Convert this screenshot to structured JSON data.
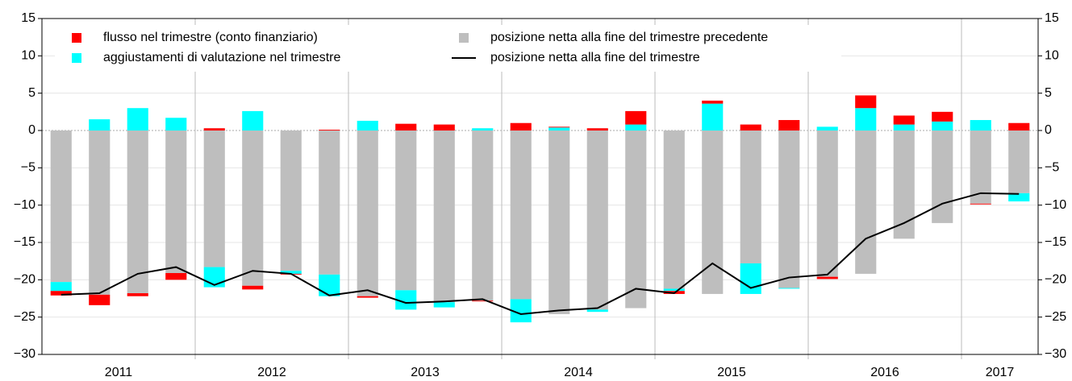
{
  "chart_data": {
    "type": "bar",
    "categories": [
      "2011",
      null,
      null,
      null,
      "2012",
      null,
      null,
      null,
      "2013",
      null,
      null,
      null,
      "2014",
      null,
      null,
      null,
      "2015",
      null,
      null,
      null,
      "2016",
      null,
      null,
      null,
      "2017",
      null
    ],
    "series": [
      {
        "name": "flusso nel trimestre (conto finanziario)",
        "color": "#ff0000",
        "values": [
          -0.6,
          -1.4,
          -0.4,
          -0.9,
          0.3,
          -0.5,
          -0.1,
          0.1,
          -0.2,
          0.9,
          0.8,
          -0.1,
          1.0,
          0.1,
          0.3,
          1.8,
          -0.4,
          0.4,
          0.8,
          1.4,
          -0.3,
          1.7,
          1.2,
          1.3,
          -0.1,
          1.0
        ]
      },
      {
        "name": "aggiustamenti di valutazione nel trimestre",
        "color": "#00ffff",
        "values": [
          -1.2,
          1.5,
          3.0,
          1.7,
          -2.7,
          2.6,
          -0.4,
          -2.9,
          1.3,
          -2.6,
          -0.7,
          0.3,
          -3.1,
          0.4,
          -0.3,
          0.8,
          -0.3,
          3.6,
          -4.1,
          -0.1,
          0.5,
          3.0,
          0.8,
          1.2,
          1.4,
          -1.1
        ]
      },
      {
        "name": "posizione netta alla fine del trimestre precedente",
        "color": "#bebebe",
        "values": [
          -20.3,
          -22.0,
          -21.8,
          -19.1,
          -18.3,
          -20.8,
          -18.8,
          -19.3,
          -22.2,
          -21.4,
          -23.0,
          -22.8,
          -22.6,
          -24.6,
          -24.0,
          -23.8,
          -21.2,
          -21.9,
          -17.8,
          -21.1,
          -19.6,
          -19.2,
          -14.5,
          -12.4,
          -9.8,
          -8.4
        ]
      },
      {
        "name": "posizione netta alla fine del trimestre",
        "color": "#000000",
        "type": "line",
        "values": [
          -22.0,
          -21.8,
          -19.2,
          -18.3,
          -20.7,
          -18.8,
          -19.2,
          -22.1,
          -21.4,
          -23.1,
          -22.9,
          -22.6,
          -24.6,
          -24.1,
          -23.8,
          -21.2,
          -21.8,
          -17.8,
          -21.1,
          -19.7,
          -19.3,
          -14.5,
          -12.4,
          -9.8,
          -8.4,
          -8.5
        ]
      }
    ],
    "ylim": [
      -30,
      15
    ],
    "yticks": [
      {
        "value": -30,
        "label": "−30"
      },
      {
        "value": -25,
        "label": "−25"
      },
      {
        "value": -20,
        "label": "−20"
      },
      {
        "value": -15,
        "label": "−15"
      },
      {
        "value": -10,
        "label": "−10"
      },
      {
        "value": -5,
        "label": "−5"
      },
      0,
      5,
      10,
      15
    ],
    "y2lim": [
      -30,
      15
    ],
    "y2ticks": [
      {
        "value": -30,
        "label": "−30"
      },
      {
        "value": -25,
        "label": "−25"
      },
      {
        "value": -20,
        "label": "−20"
      },
      {
        "value": -15,
        "label": "−15"
      },
      {
        "value": -10,
        "label": "−10"
      },
      {
        "value": -5,
        "label": "−5"
      },
      0,
      5,
      10,
      15
    ],
    "grid": true,
    "legend": "top"
  }
}
